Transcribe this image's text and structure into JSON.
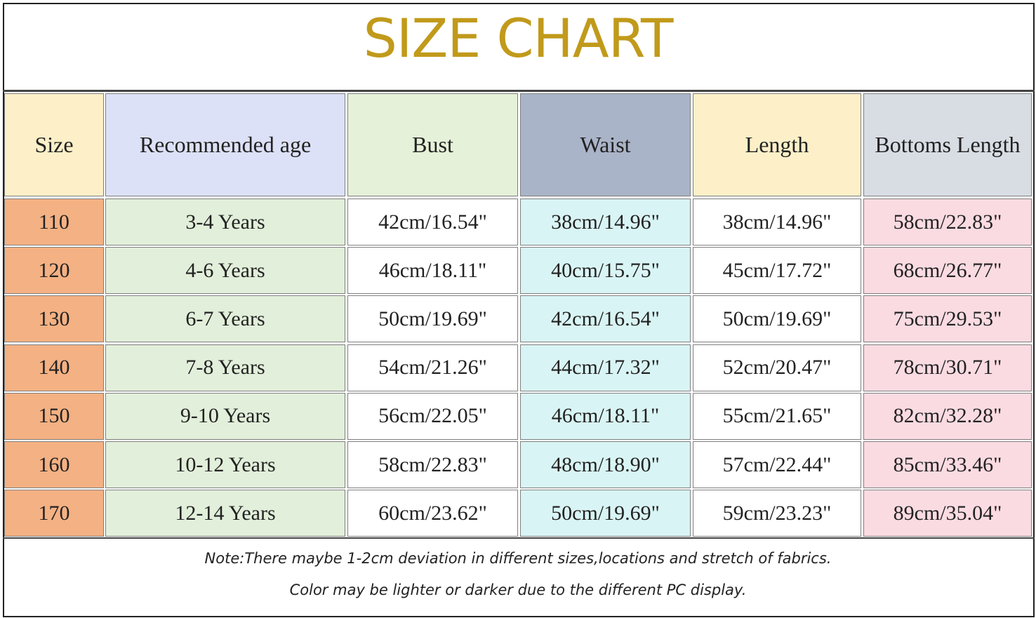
{
  "title": "SIZE CHART",
  "table": {
    "headers": [
      "Size",
      "Recommended age",
      "Bust",
      "Waist",
      "Length",
      "Bottoms Length"
    ],
    "rows": [
      [
        "110",
        "3-4 Years",
        "42cm/16.54\"",
        "38cm/14.96\"",
        "38cm/14.96\"",
        "58cm/22.83\""
      ],
      [
        "120",
        "4-6 Years",
        "46cm/18.11\"",
        "40cm/15.75\"",
        "45cm/17.72\"",
        "68cm/26.77\""
      ],
      [
        "130",
        "6-7 Years",
        "50cm/19.69\"",
        "42cm/16.54\"",
        "50cm/19.69\"",
        "75cm/29.53\""
      ],
      [
        "140",
        "7-8 Years",
        "54cm/21.26\"",
        "44cm/17.32\"",
        "52cm/20.47\"",
        "78cm/30.71\""
      ],
      [
        "150",
        "9-10 Years",
        "56cm/22.05\"",
        "46cm/18.11\"",
        "55cm/21.65\"",
        "82cm/32.28\""
      ],
      [
        "160",
        "10-12 Years",
        "58cm/22.83\"",
        "48cm/18.90\"",
        "57cm/22.44\"",
        "85cm/33.46\""
      ],
      [
        "170",
        "12-14 Years",
        "60cm/23.62\"",
        "50cm/19.69\"",
        "59cm/23.23\"",
        "89cm/35.04\""
      ]
    ]
  },
  "notes": [
    "Note:There maybe 1-2cm deviation in different sizes,locations and stretch of fabrics.",
    "Color may be lighter or darker due to the different PC display."
  ]
}
